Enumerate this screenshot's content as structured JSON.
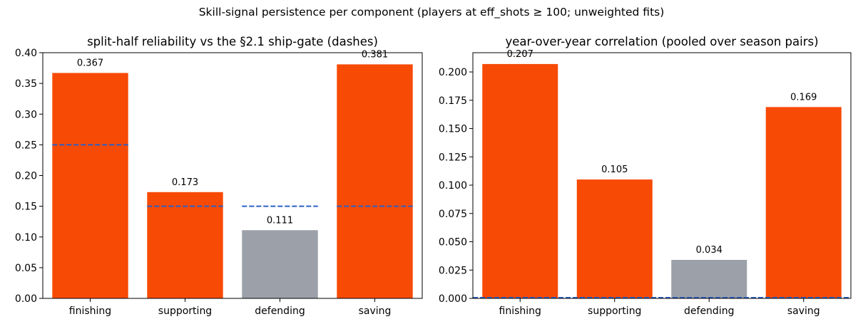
{
  "figure": {
    "suptitle": "Skill-signal persistence per component (players at eff_shots ≥ 100; unweighted fits)"
  },
  "colors": {
    "pass_bar": "#f74a05",
    "fail_bar": "#9ca0a8",
    "gate_line": "#2b5fc7"
  },
  "chart_data": [
    {
      "type": "bar",
      "title": "split-half reliability vs the §2.1 ship-gate (dashes)",
      "categories": [
        "finishing",
        "supporting",
        "defending",
        "saving"
      ],
      "values": [
        0.367,
        0.173,
        0.111,
        0.381
      ],
      "value_labels": [
        "0.367",
        "0.173",
        "0.111",
        "0.381"
      ],
      "bar_colors": [
        "#f74a05",
        "#f74a05",
        "#9ca0a8",
        "#f74a05"
      ],
      "gates": [
        0.25,
        0.15,
        0.15,
        0.15
      ],
      "ylim": [
        0,
        0.4
      ],
      "yticks": [
        0,
        0.05,
        0.1,
        0.15,
        0.2,
        0.25,
        0.3,
        0.35,
        0.4
      ],
      "ytick_labels": [
        "0.00",
        "0.05",
        "0.10",
        "0.15",
        "0.20",
        "0.25",
        "0.30",
        "0.35",
        "0.40"
      ],
      "xlabel": "",
      "ylabel": ""
    },
    {
      "type": "bar",
      "title": "year-over-year correlation (pooled over season pairs)",
      "categories": [
        "finishing",
        "supporting",
        "defending",
        "saving"
      ],
      "values": [
        0.207,
        0.105,
        0.034,
        0.169
      ],
      "value_labels": [
        "0.207",
        "0.105",
        "0.034",
        "0.169"
      ],
      "bar_colors": [
        "#f74a05",
        "#f74a05",
        "#9ca0a8",
        "#f74a05"
      ],
      "baseline": 0,
      "ylim": [
        0,
        0.217
      ],
      "yticks": [
        0,
        0.025,
        0.05,
        0.075,
        0.1,
        0.125,
        0.15,
        0.175,
        0.2
      ],
      "ytick_labels": [
        "0.000",
        "0.025",
        "0.050",
        "0.075",
        "0.100",
        "0.125",
        "0.150",
        "0.175",
        "0.200"
      ],
      "xlabel": "",
      "ylabel": ""
    }
  ]
}
